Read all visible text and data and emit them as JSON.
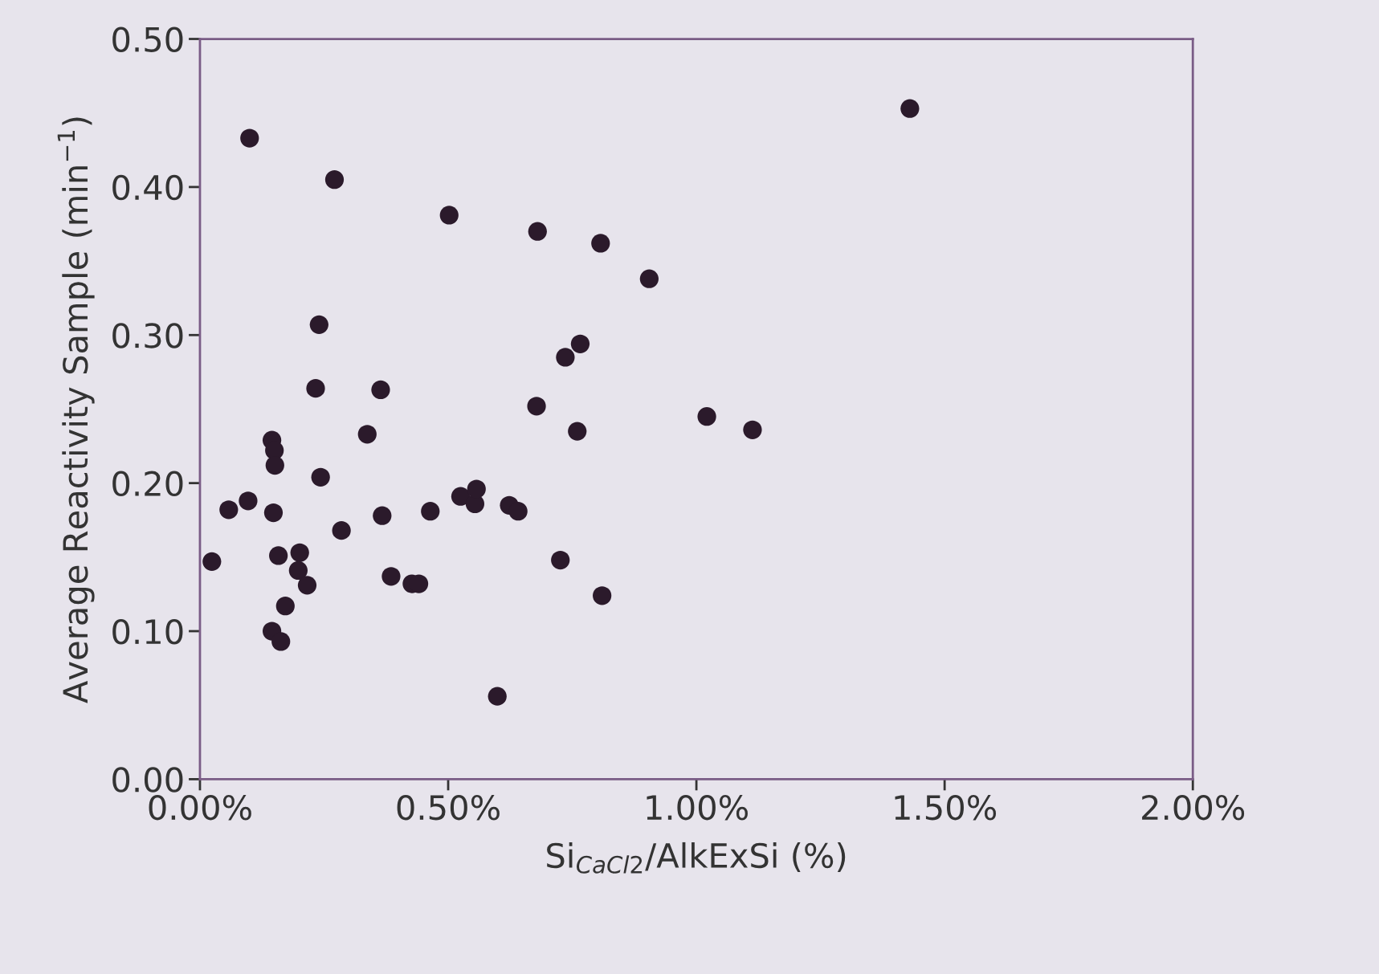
{
  "chart_data": {
    "type": "scatter",
    "xlabel": "Si$_{CaCl2}$/AlkExSi (%)",
    "ylabel": "Average Reactivity Sample (min$^{−1}$)",
    "x": [
      0.024,
      0.058,
      0.097,
      0.1,
      0.145,
      0.15,
      0.151,
      0.148,
      0.158,
      0.145,
      0.163,
      0.172,
      0.201,
      0.198,
      0.216,
      0.233,
      0.24,
      0.243,
      0.271,
      0.285,
      0.337,
      0.364,
      0.367,
      0.385,
      0.427,
      0.441,
      0.464,
      0.502,
      0.525,
      0.554,
      0.557,
      0.599,
      0.623,
      0.641,
      0.68,
      0.678,
      0.726,
      0.736,
      0.766,
      0.76,
      0.807,
      0.81,
      0.905,
      1.021,
      1.113,
      1.43
    ],
    "values": [
      0.147,
      0.182,
      0.188,
      0.433,
      0.229,
      0.222,
      0.212,
      0.18,
      0.151,
      0.1,
      0.093,
      0.117,
      0.153,
      0.141,
      0.131,
      0.264,
      0.307,
      0.204,
      0.405,
      0.168,
      0.233,
      0.263,
      0.178,
      0.137,
      0.132,
      0.132,
      0.181,
      0.381,
      0.191,
      0.186,
      0.196,
      0.056,
      0.185,
      0.181,
      0.37,
      0.252,
      0.148,
      0.285,
      0.294,
      0.235,
      0.362,
      0.124,
      0.338,
      0.245,
      0.236,
      0.453
    ],
    "color": "#2b1a2b",
    "marker": "circle",
    "xlim": [
      0,
      2
    ],
    "xticks": [
      {
        "value": 0,
        "label": "0.00%"
      },
      {
        "value": 0.5,
        "label": "0.50%"
      },
      {
        "value": 1,
        "label": "1.00%"
      },
      {
        "value": 1.5,
        "label": "1.50%"
      },
      {
        "value": 2,
        "label": "2.00%"
      }
    ],
    "ylim": [
      0,
      0.5
    ],
    "yticks": [
      {
        "value": 0,
        "label": "0.00"
      },
      {
        "value": 0.1,
        "label": "0.10"
      },
      {
        "value": 0.2,
        "label": "0.20"
      },
      {
        "value": 0.3,
        "label": "0.30"
      },
      {
        "value": 0.4,
        "label": "0.40"
      },
      {
        "value": 0.5,
        "label": "0.50"
      }
    ],
    "grid": false
  }
}
